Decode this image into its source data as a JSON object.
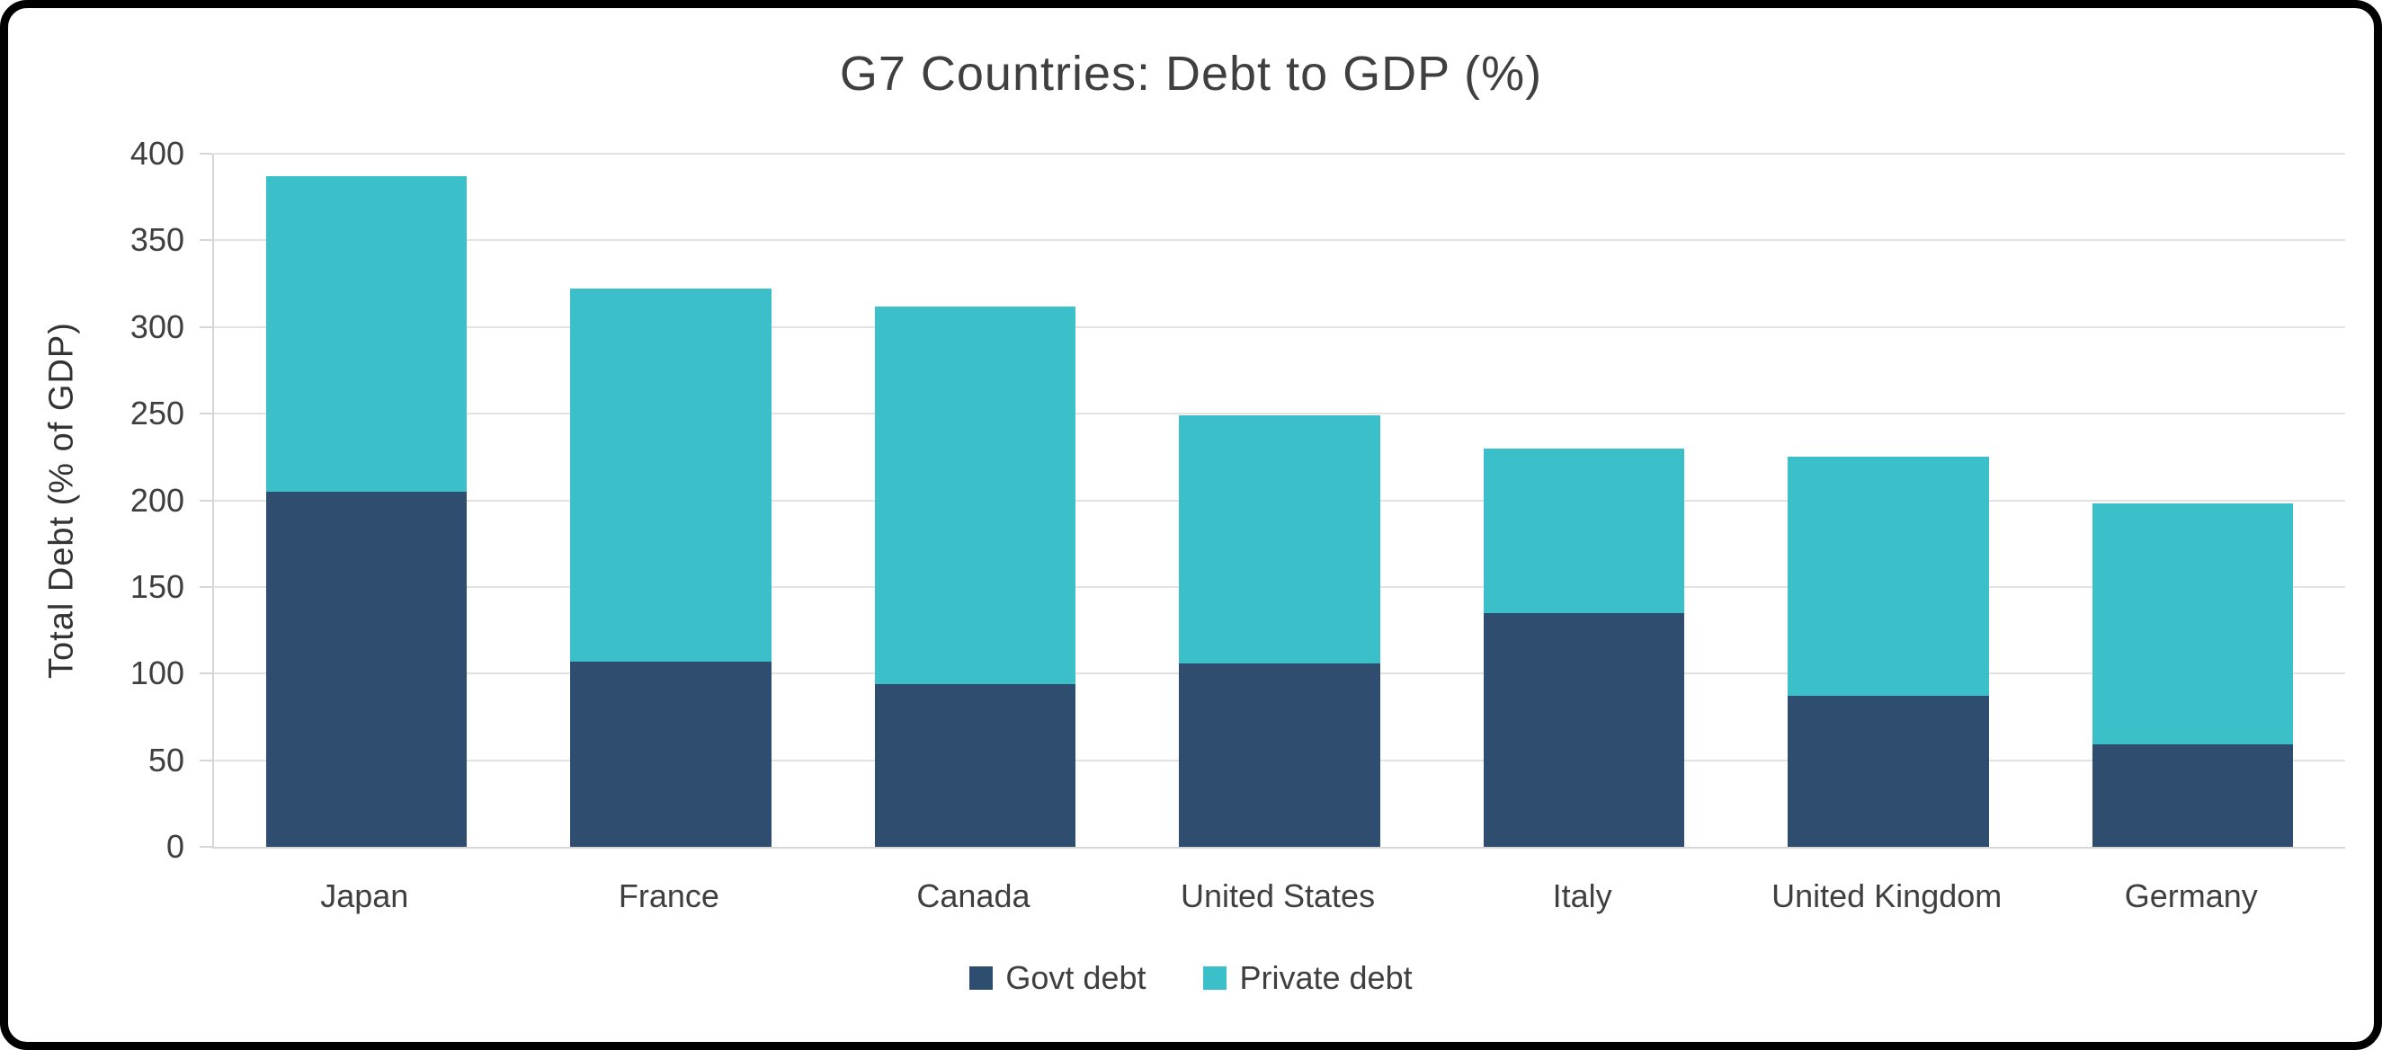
{
  "chart_data": {
    "type": "bar",
    "stacked": true,
    "title": "G7 Countries: Debt to GDP (%)",
    "xlabel": "",
    "ylabel": "Total Debt (% of GDP)",
    "categories": [
      "Japan",
      "France",
      "Canada",
      "United States",
      "Italy",
      "United Kingdom",
      "Germany"
    ],
    "series": [
      {
        "name": "Govt debt",
        "color": "#2e4d6f",
        "values": [
          205,
          107,
          94,
          106,
          135,
          87,
          59
        ]
      },
      {
        "name": "Private debt",
        "color": "#3bbfc9",
        "values": [
          182,
          215,
          218,
          143,
          95,
          138,
          139
        ]
      }
    ],
    "totals": [
      387,
      322,
      312,
      249,
      230,
      225,
      198
    ],
    "ylim": [
      0,
      400
    ],
    "ytick_step": 50,
    "grid": true,
    "legend_position": "bottom"
  },
  "colors": {
    "grid": "#e2e2e2",
    "axis": "#d6d6d6",
    "text": "#3f3f3f",
    "background": "#ffffff",
    "frame_border": "#000000"
  }
}
